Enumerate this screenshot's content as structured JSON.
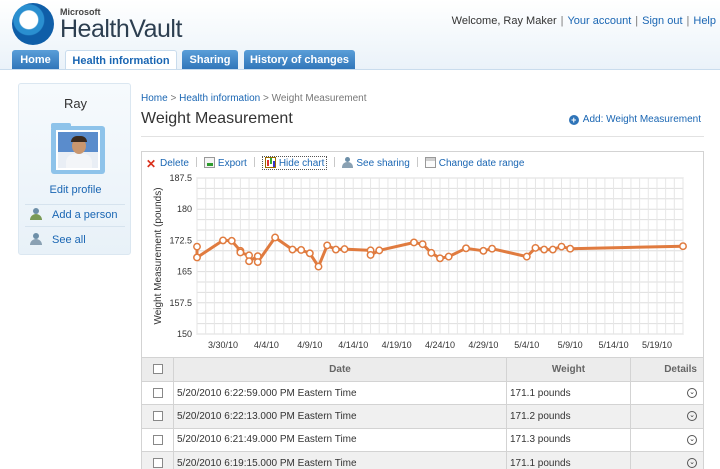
{
  "header": {
    "logo_small": "Microsoft",
    "logo_main": "HealthVault",
    "welcome": "Welcome, Ray Maker",
    "links": [
      "Your account",
      "Sign out",
      "Help"
    ]
  },
  "tabs": [
    {
      "label": "Home",
      "active": false
    },
    {
      "label": "Health information",
      "active": true
    },
    {
      "label": "Sharing",
      "active": false
    },
    {
      "label": "History of changes",
      "active": false
    }
  ],
  "sidebar": {
    "name": "Ray",
    "edit_profile": "Edit profile",
    "items": [
      {
        "label": "Add a person",
        "icon": "person-add-icon"
      },
      {
        "label": "See all",
        "icon": "people-icon"
      }
    ]
  },
  "breadcrumb": [
    "Home",
    "Health information",
    "Weight Measurement"
  ],
  "page_title": "Weight Measurement",
  "add_link": "Add: Weight Measurement",
  "toolbar": [
    {
      "label": "Delete",
      "icon": "delete-icon"
    },
    {
      "label": "Export",
      "icon": "export-icon"
    },
    {
      "label": "Hide chart",
      "icon": "chart-icon"
    },
    {
      "label": "See sharing",
      "icon": "sharing-icon"
    },
    {
      "label": "Change date range",
      "icon": "calendar-icon"
    }
  ],
  "chart_data": {
    "type": "line",
    "ylabel": "Weight Measurement (pounds)",
    "xlabel": "",
    "ylim": [
      150,
      187.5
    ],
    "yticks": [
      150,
      157.5,
      165,
      172.5,
      180,
      187.5
    ],
    "xticks": [
      "3/30/10",
      "4/4/10",
      "4/9/10",
      "4/14/10",
      "4/19/10",
      "4/24/10",
      "4/29/10",
      "5/4/10",
      "5/9/10",
      "5/14/10",
      "5/19/10"
    ],
    "x_start": "2010-03-27",
    "x_end": "2010-05-22",
    "color": "#e07b3f",
    "grid": true,
    "series": [
      {
        "points": [
          [
            "2010-03-27",
            171.0
          ],
          [
            "2010-03-27",
            168.4
          ],
          [
            "2010-03-30",
            172.5
          ],
          [
            "2010-03-31",
            172.4
          ],
          [
            "2010-04-01",
            170.0
          ],
          [
            "2010-04-01",
            169.6
          ],
          [
            "2010-04-02",
            168.9
          ],
          [
            "2010-04-02",
            167.5
          ],
          [
            "2010-04-03",
            168.7
          ],
          [
            "2010-04-03",
            167.3
          ],
          [
            "2010-04-05",
            173.2
          ],
          [
            "2010-04-07",
            170.3
          ],
          [
            "2010-04-08",
            170.2
          ],
          [
            "2010-04-09",
            169.4
          ],
          [
            "2010-04-10",
            166.2
          ],
          [
            "2010-04-11",
            171.3
          ],
          [
            "2010-04-12",
            170.3
          ],
          [
            "2010-04-13",
            170.4
          ],
          [
            "2010-04-16",
            170.1
          ],
          [
            "2010-04-16",
            169.0
          ],
          [
            "2010-04-17",
            170.1
          ],
          [
            "2010-04-21",
            172.0
          ],
          [
            "2010-04-22",
            171.6
          ],
          [
            "2010-04-23",
            169.5
          ],
          [
            "2010-04-24",
            168.2
          ],
          [
            "2010-04-25",
            168.6
          ],
          [
            "2010-04-27",
            170.6
          ],
          [
            "2010-04-29",
            170.0
          ],
          [
            "2010-04-30",
            170.5
          ],
          [
            "2010-05-04",
            168.6
          ],
          [
            "2010-05-05",
            170.7
          ],
          [
            "2010-05-06",
            170.3
          ],
          [
            "2010-05-07",
            170.3
          ],
          [
            "2010-05-08",
            171.0
          ],
          [
            "2010-05-09",
            170.5
          ],
          [
            "2010-05-22",
            171.1
          ]
        ]
      }
    ]
  },
  "table": {
    "columns": [
      "Date",
      "Weight",
      "Details"
    ],
    "rows": [
      {
        "date": "5/20/2010 6:22:59.000 PM Eastern Time",
        "weight": "171.1 pounds"
      },
      {
        "date": "5/20/2010 6:22:13.000 PM Eastern Time",
        "weight": "171.2 pounds"
      },
      {
        "date": "5/20/2010 6:21:49.000 PM Eastern Time",
        "weight": "171.3 pounds"
      },
      {
        "date": "5/20/2010 6:19:15.000 PM Eastern Time",
        "weight": "171.1 pounds"
      }
    ]
  }
}
